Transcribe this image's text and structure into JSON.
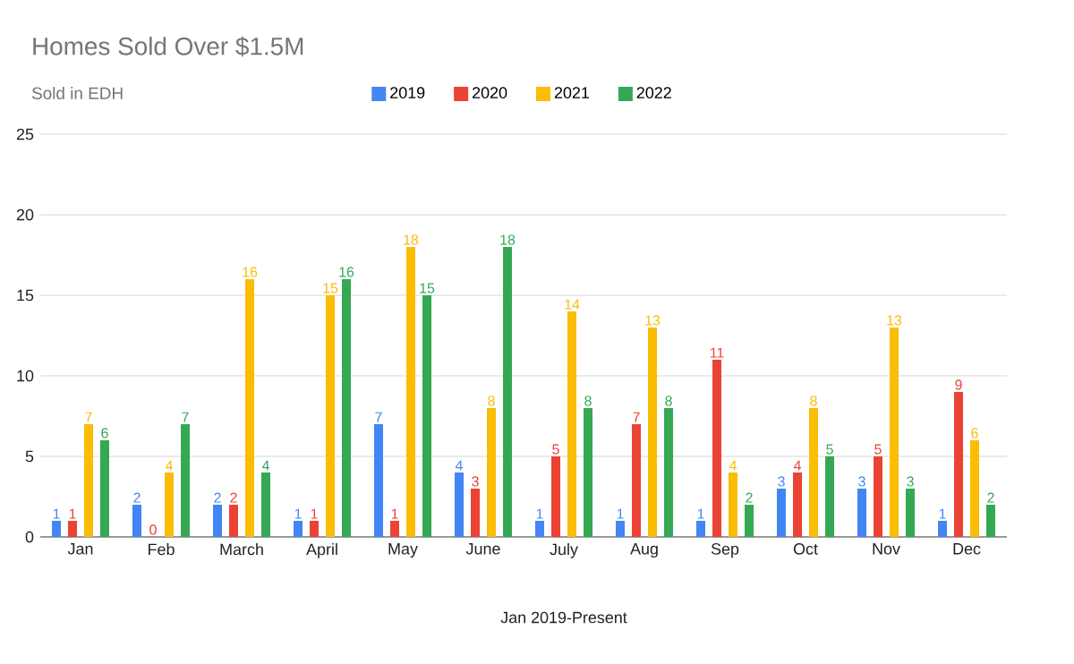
{
  "chart_data": {
    "type": "bar",
    "title": "Homes Sold Over $1.5M",
    "subtitle": "Sold in EDH",
    "xlabel": "Jan 2019-Present",
    "categories": [
      "Jan",
      "Feb",
      "March",
      "April",
      "May",
      "June",
      "July",
      "Aug",
      "Sep",
      "Oct",
      "Nov",
      "Dec"
    ],
    "series": [
      {
        "name": "2019",
        "color": "#4285f4",
        "values": [
          1,
          2,
          2,
          1,
          7,
          4,
          1,
          1,
          1,
          3,
          3,
          1
        ]
      },
      {
        "name": "2020",
        "color": "#ea4335",
        "values": [
          1,
          0,
          2,
          1,
          1,
          3,
          5,
          7,
          11,
          4,
          5,
          9
        ]
      },
      {
        "name": "2021",
        "color": "#fbbc04",
        "values": [
          7,
          4,
          16,
          15,
          18,
          8,
          14,
          13,
          4,
          8,
          13,
          6
        ]
      },
      {
        "name": "2022",
        "color": "#34a853",
        "values": [
          6,
          7,
          4,
          16,
          15,
          18,
          8,
          8,
          2,
          5,
          3,
          2
        ]
      }
    ],
    "ylim": [
      0,
      25
    ],
    "yticks": [
      0,
      5,
      10,
      15,
      20,
      25
    ],
    "grid": "y",
    "legend": "top",
    "data_labels": true
  }
}
